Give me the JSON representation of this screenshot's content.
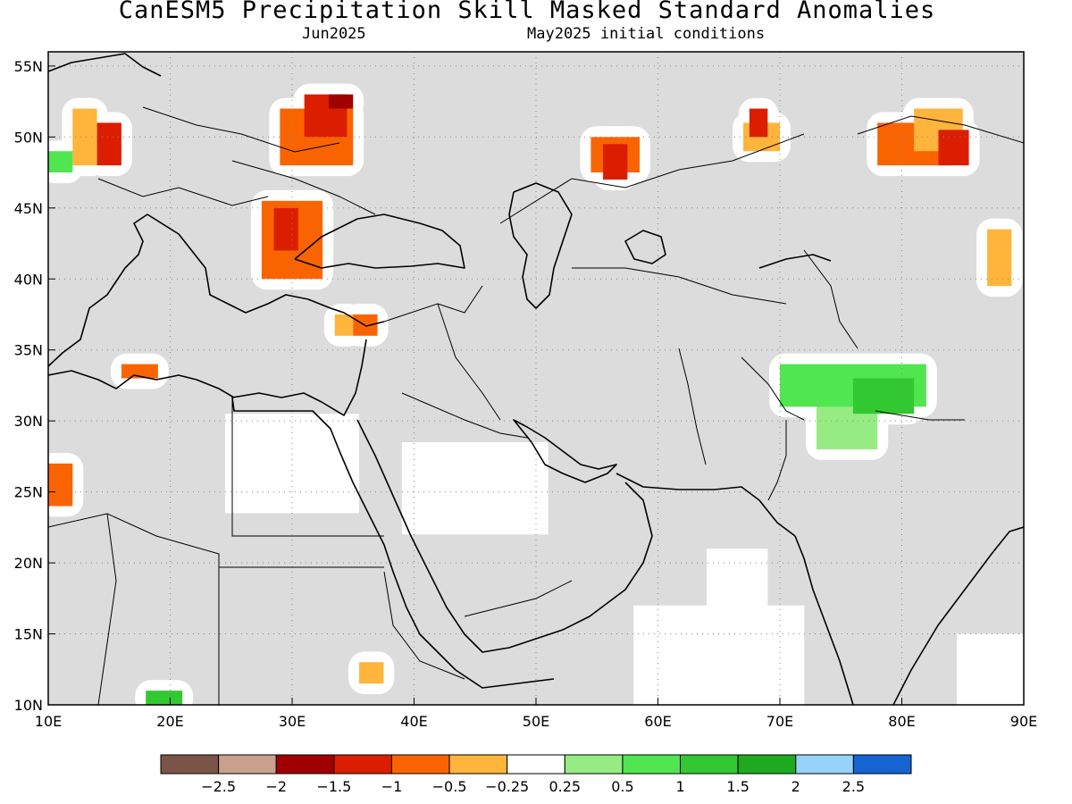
{
  "header": {
    "title": "CanESM5 Precipitation Skill Masked Standard Anomalies",
    "left_subtitle": "Jun2025",
    "right_subtitle": "May2025 initial conditions"
  },
  "map": {
    "lon_range": [
      10,
      90
    ],
    "lat_range": [
      10,
      56
    ],
    "x_ticks": [
      {
        "lon": 10,
        "label": "10E"
      },
      {
        "lon": 20,
        "label": "20E"
      },
      {
        "lon": 30,
        "label": "30E"
      },
      {
        "lon": 40,
        "label": "40E"
      },
      {
        "lon": 50,
        "label": "50E"
      },
      {
        "lon": 60,
        "label": "60E"
      },
      {
        "lon": 70,
        "label": "70E"
      },
      {
        "lon": 80,
        "label": "80E"
      },
      {
        "lon": 90,
        "label": "90E"
      }
    ],
    "y_ticks": [
      {
        "lat": 10,
        "label": "10N"
      },
      {
        "lat": 15,
        "label": "15N"
      },
      {
        "lat": 20,
        "label": "20N"
      },
      {
        "lat": 25,
        "label": "25N"
      },
      {
        "lat": 30,
        "label": "30N"
      },
      {
        "lat": 35,
        "label": "35N"
      },
      {
        "lat": 40,
        "label": "40N"
      },
      {
        "lat": 45,
        "label": "45N"
      },
      {
        "lat": 50,
        "label": "50N"
      },
      {
        "lat": 55,
        "label": "55N"
      }
    ],
    "colors": {
      "masked": "#dcdcdc",
      "neutral": "#ffffff",
      "gridline": "#888888"
    }
  },
  "colorbar": {
    "swatches": [
      "#7a5547",
      "#c8a08c",
      "#a00000",
      "#dc1e00",
      "#fa6400",
      "#ffb43c",
      "#ffffff",
      "#96ec82",
      "#50e650",
      "#32c832",
      "#1eaa1e",
      "#96d2fa",
      "#1464d2"
    ],
    "labels": [
      "−2.5",
      "−2",
      "−1.5",
      "−1",
      "−0.5",
      "−0.25",
      "0.25",
      "0.5",
      "1",
      "1.5",
      "2",
      "2.5"
    ]
  },
  "anomaly_regions": [
    {
      "name": "white-north-africa",
      "color": "#ffffff",
      "lon": [
        24.5,
        35.5
      ],
      "lat": [
        23.5,
        30.5
      ]
    },
    {
      "name": "white-arabia-north",
      "color": "#ffffff",
      "lon": [
        39,
        51
      ],
      "lat": [
        22,
        28.5
      ]
    },
    {
      "name": "white-india-south",
      "color": "#ffffff",
      "lon": [
        58,
        72
      ],
      "lat": [
        10,
        17
      ]
    },
    {
      "name": "white-india-central",
      "color": "#ffffff",
      "lon": [
        64,
        69
      ],
      "lat": [
        16,
        21
      ]
    },
    {
      "name": "white-bay-bengal",
      "color": "#ffffff",
      "lon": [
        84.5,
        90
      ],
      "lat": [
        10,
        15
      ]
    },
    {
      "name": "orange-italy",
      "color": "#ffb43c",
      "lon": [
        12,
        14
      ],
      "lat": [
        48,
        52
      ]
    },
    {
      "name": "red-italy",
      "color": "#dc1e00",
      "lon": [
        14,
        16
      ],
      "lat": [
        48,
        51
      ]
    },
    {
      "name": "orange-poland",
      "color": "#fa6400",
      "lon": [
        29,
        35
      ],
      "lat": [
        48,
        52
      ]
    },
    {
      "name": "red-poland",
      "color": "#dc1e00",
      "lon": [
        31,
        34.5
      ],
      "lat": [
        50,
        53
      ]
    },
    {
      "name": "darkred-poland",
      "color": "#a00000",
      "lon": [
        33,
        35
      ],
      "lat": [
        52,
        53
      ]
    },
    {
      "name": "orange-balkans",
      "color": "#fa6400",
      "lon": [
        27.5,
        32.5
      ],
      "lat": [
        40,
        45.5
      ]
    },
    {
      "name": "red-balkans",
      "color": "#dc1e00",
      "lon": [
        28.5,
        30.5
      ],
      "lat": [
        42,
        45
      ]
    },
    {
      "name": "orange-turkey",
      "color": "#ffb43c",
      "lon": [
        33.5,
        35
      ],
      "lat": [
        36,
        37.5
      ]
    },
    {
      "name": "orange-turkey-east",
      "color": "#fa6400",
      "lon": [
        35,
        37
      ],
      "lat": [
        36,
        37.5
      ]
    },
    {
      "name": "orange-libya",
      "color": "#fa6400",
      "lon": [
        16,
        19
      ],
      "lat": [
        33,
        34
      ]
    },
    {
      "name": "orange-algeria",
      "color": "#fa6400",
      "lon": [
        10,
        12
      ],
      "lat": [
        24,
        27
      ]
    },
    {
      "name": "orange-kazakh",
      "color": "#fa6400",
      "lon": [
        54.5,
        58.5
      ],
      "lat": [
        47.5,
        50
      ]
    },
    {
      "name": "red-kazakh",
      "color": "#dc1e00",
      "lon": [
        55.5,
        57.5
      ],
      "lat": [
        47,
        49.5
      ]
    },
    {
      "name": "orange-kazakh-north",
      "color": "#ffb43c",
      "lon": [
        67,
        70
      ],
      "lat": [
        49,
        51
      ]
    },
    {
      "name": "red-kazakh-north",
      "color": "#dc1e00",
      "lon": [
        67.5,
        69
      ],
      "lat": [
        50,
        52
      ]
    },
    {
      "name": "orange-mongolia",
      "color": "#fa6400",
      "lon": [
        78,
        84
      ],
      "lat": [
        48,
        51
      ]
    },
    {
      "name": "yellow-mongolia",
      "color": "#ffb43c",
      "lon": [
        81,
        85
      ],
      "lat": [
        49,
        52
      ]
    },
    {
      "name": "red-mongolia",
      "color": "#dc1e00",
      "lon": [
        83,
        85.5
      ],
      "lat": [
        48,
        50.5
      ]
    },
    {
      "name": "yellow-mongolia-east",
      "color": "#ffb43c",
      "lon": [
        87,
        89
      ],
      "lat": [
        39.5,
        43.5
      ]
    },
    {
      "name": "green-pakistan-light",
      "color": "#96ec82",
      "lon": [
        73,
        78
      ],
      "lat": [
        28,
        32
      ]
    },
    {
      "name": "green-pakistan",
      "color": "#50e650",
      "lon": [
        70,
        82
      ],
      "lat": [
        31,
        34
      ]
    },
    {
      "name": "green-pakistan-dark",
      "color": "#32c832",
      "lon": [
        76,
        81
      ],
      "lat": [
        30.5,
        33
      ]
    },
    {
      "name": "green-germany",
      "color": "#50e650",
      "lon": [
        10,
        12
      ],
      "lat": [
        47.5,
        49
      ]
    },
    {
      "name": "green-sudan",
      "color": "#32c832",
      "lon": [
        18,
        21
      ],
      "lat": [
        10,
        11
      ]
    },
    {
      "name": "orange-eritrea",
      "color": "#ffb43c",
      "lon": [
        35.5,
        37.5
      ],
      "lat": [
        11.5,
        13
      ]
    }
  ]
}
